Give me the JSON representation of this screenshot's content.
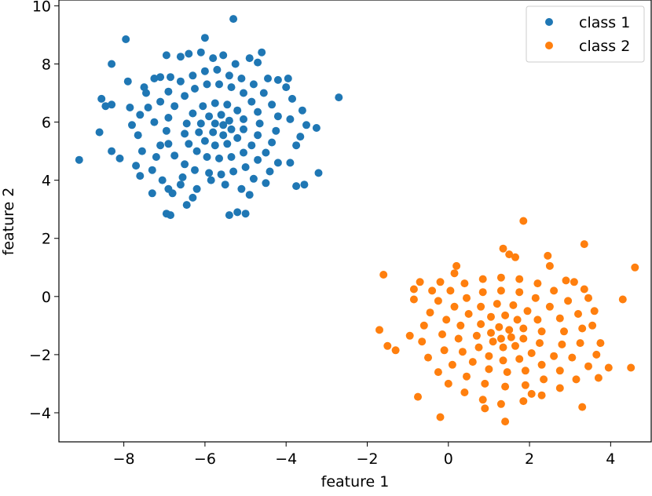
{
  "chart_data": {
    "type": "scatter",
    "title": "",
    "xlabel": "feature 1",
    "ylabel": "feature 2",
    "xlim": [
      -9.6,
      5.0
    ],
    "ylim": [
      -5.0,
      10.2
    ],
    "xticks": [
      -8,
      -6,
      -4,
      -2,
      0,
      2,
      4
    ],
    "yticks": [
      -4,
      -2,
      0,
      2,
      4,
      6,
      8,
      10
    ],
    "xtick_labels": [
      "−8",
      "−6",
      "−4",
      "−2",
      "0",
      "2",
      "4"
    ],
    "ytick_labels": [
      "−4",
      "−2",
      "0",
      "2",
      "4",
      "6",
      "8",
      "10"
    ],
    "grid": false,
    "legend_position": "top-right",
    "series": [
      {
        "name": "class 1",
        "color": "#1f77b4",
        "points": [
          [
            -9.1,
            4.7
          ],
          [
            -8.3,
            8.0
          ],
          [
            -7.95,
            8.85
          ],
          [
            -8.55,
            6.8
          ],
          [
            -8.6,
            5.65
          ],
          [
            -7.9,
            7.4
          ],
          [
            -6.95,
            2.85
          ],
          [
            -6.85,
            2.8
          ],
          [
            -5.4,
            2.8
          ],
          [
            -5.2,
            2.9
          ],
          [
            -5.0,
            2.85
          ],
          [
            -5.3,
            9.55
          ],
          [
            -6.0,
            8.9
          ],
          [
            -6.1,
            8.4
          ],
          [
            -4.6,
            8.4
          ],
          [
            -3.95,
            7.5
          ],
          [
            -2.7,
            6.85
          ],
          [
            -3.25,
            5.8
          ],
          [
            -3.2,
            4.25
          ],
          [
            -3.55,
            3.85
          ],
          [
            -3.75,
            3.8
          ],
          [
            -4.5,
            3.9
          ],
          [
            -4.9,
            3.5
          ],
          [
            -6.45,
            3.15
          ],
          [
            -6.3,
            3.4
          ],
          [
            -7.3,
            3.55
          ],
          [
            -7.6,
            4.15
          ],
          [
            -7.7,
            4.5
          ],
          [
            -8.3,
            5.0
          ],
          [
            -8.1,
            4.75
          ],
          [
            -8.45,
            6.55
          ],
          [
            -8.3,
            6.6
          ],
          [
            -7.85,
            6.5
          ],
          [
            -7.5,
            7.2
          ],
          [
            -7.45,
            7.0
          ],
          [
            -7.25,
            7.5
          ],
          [
            -7.1,
            7.55
          ],
          [
            -6.85,
            7.55
          ],
          [
            -6.95,
            8.3
          ],
          [
            -6.6,
            8.25
          ],
          [
            -6.4,
            8.35
          ],
          [
            -5.8,
            8.2
          ],
          [
            -5.55,
            8.3
          ],
          [
            -5.25,
            8.0
          ],
          [
            -4.9,
            8.2
          ],
          [
            -4.7,
            8.05
          ],
          [
            -4.45,
            7.5
          ],
          [
            -4.2,
            7.45
          ],
          [
            -4.0,
            7.2
          ],
          [
            -3.85,
            6.8
          ],
          [
            -3.9,
            6.1
          ],
          [
            -3.6,
            6.4
          ],
          [
            -3.5,
            5.9
          ],
          [
            -3.65,
            5.5
          ],
          [
            -3.75,
            5.2
          ],
          [
            -3.9,
            4.6
          ],
          [
            -4.2,
            4.6
          ],
          [
            -4.4,
            4.3
          ],
          [
            -4.8,
            4.05
          ],
          [
            -5.1,
            3.7
          ],
          [
            -5.5,
            3.85
          ],
          [
            -5.85,
            4.0
          ],
          [
            -6.2,
            3.7
          ],
          [
            -6.6,
            3.85
          ],
          [
            -6.9,
            3.7
          ],
          [
            -7.05,
            4.0
          ],
          [
            -7.3,
            4.35
          ],
          [
            -7.55,
            5.0
          ],
          [
            -7.65,
            5.55
          ],
          [
            -7.8,
            5.9
          ],
          [
            -7.6,
            6.25
          ],
          [
            -7.4,
            6.5
          ],
          [
            -6.8,
            3.55
          ],
          [
            -6.55,
            4.1
          ],
          [
            -7.2,
            4.8
          ],
          [
            -7.1,
            5.2
          ],
          [
            -7.25,
            6.0
          ],
          [
            -7.1,
            6.7
          ],
          [
            -6.9,
            7.05
          ],
          [
            -6.6,
            7.4
          ],
          [
            -6.3,
            7.6
          ],
          [
            -6.0,
            7.75
          ],
          [
            -5.7,
            7.8
          ],
          [
            -5.4,
            7.6
          ],
          [
            -5.1,
            7.5
          ],
          [
            -4.8,
            7.3
          ],
          [
            -4.55,
            7.0
          ],
          [
            -4.35,
            6.6
          ],
          [
            -4.2,
            6.2
          ],
          [
            -4.25,
            5.7
          ],
          [
            -4.35,
            5.3
          ],
          [
            -4.5,
            4.95
          ],
          [
            -4.7,
            4.7
          ],
          [
            -5.0,
            4.45
          ],
          [
            -5.3,
            4.3
          ],
          [
            -5.6,
            4.2
          ],
          [
            -5.9,
            4.25
          ],
          [
            -6.25,
            4.35
          ],
          [
            -6.5,
            4.55
          ],
          [
            -6.75,
            4.85
          ],
          [
            -6.9,
            5.25
          ],
          [
            -6.95,
            5.7
          ],
          [
            -6.9,
            6.15
          ],
          [
            -6.75,
            6.55
          ],
          [
            -6.5,
            6.9
          ],
          [
            -6.25,
            7.15
          ],
          [
            -5.95,
            7.3
          ],
          [
            -5.65,
            7.3
          ],
          [
            -5.35,
            7.2
          ],
          [
            -5.05,
            7.0
          ],
          [
            -4.85,
            6.7
          ],
          [
            -4.7,
            6.35
          ],
          [
            -4.65,
            5.95
          ],
          [
            -4.7,
            5.55
          ],
          [
            -4.85,
            5.2
          ],
          [
            -5.05,
            4.95
          ],
          [
            -5.35,
            4.8
          ],
          [
            -5.65,
            4.75
          ],
          [
            -5.95,
            4.8
          ],
          [
            -6.2,
            5.0
          ],
          [
            -6.4,
            5.25
          ],
          [
            -6.5,
            5.6
          ],
          [
            -6.45,
            5.95
          ],
          [
            -6.3,
            6.3
          ],
          [
            -6.05,
            6.55
          ],
          [
            -5.75,
            6.65
          ],
          [
            -5.45,
            6.6
          ],
          [
            -5.2,
            6.4
          ],
          [
            -5.05,
            6.1
          ],
          [
            -5.05,
            5.75
          ],
          [
            -5.2,
            5.45
          ],
          [
            -5.45,
            5.25
          ],
          [
            -5.75,
            5.2
          ],
          [
            -6.0,
            5.35
          ],
          [
            -6.15,
            5.65
          ],
          [
            -6.1,
            5.95
          ],
          [
            -5.9,
            6.2
          ],
          [
            -5.6,
            6.25
          ],
          [
            -5.4,
            6.05
          ],
          [
            -5.35,
            5.75
          ],
          [
            -5.55,
            5.55
          ],
          [
            -5.8,
            5.65
          ],
          [
            -5.75,
            5.95
          ],
          [
            -5.55,
            5.9
          ]
        ]
      },
      {
        "name": "class 2",
        "color": "#ff7f0e",
        "points": [
          [
            1.85,
            2.6
          ],
          [
            3.35,
            1.8
          ],
          [
            4.6,
            1.0
          ],
          [
            4.3,
            -0.1
          ],
          [
            4.5,
            -2.45
          ],
          [
            3.95,
            -2.45
          ],
          [
            3.7,
            -2.8
          ],
          [
            3.3,
            -3.8
          ],
          [
            2.05,
            -3.35
          ],
          [
            1.4,
            -4.3
          ],
          [
            0.9,
            -3.85
          ],
          [
            -0.75,
            -3.45
          ],
          [
            -0.2,
            -4.15
          ],
          [
            -1.6,
            0.75
          ],
          [
            -1.7,
            -1.15
          ],
          [
            -1.5,
            -1.7
          ],
          [
            -1.3,
            -1.85
          ],
          [
            -0.95,
            -1.35
          ],
          [
            -0.85,
            -0.1
          ],
          [
            -0.85,
            0.25
          ],
          [
            -0.7,
            0.5
          ],
          [
            -0.4,
            0.2
          ],
          [
            -0.2,
            0.5
          ],
          [
            0.15,
            0.8
          ],
          [
            0.2,
            1.05
          ],
          [
            1.35,
            1.65
          ],
          [
            1.5,
            1.45
          ],
          [
            1.65,
            1.35
          ],
          [
            2.45,
            1.4
          ],
          [
            2.5,
            1.05
          ],
          [
            2.9,
            0.55
          ],
          [
            3.1,
            0.5
          ],
          [
            3.35,
            0.25
          ],
          [
            3.45,
            -0.05
          ],
          [
            3.6,
            -0.5
          ],
          [
            3.55,
            -1.0
          ],
          [
            3.75,
            -1.6
          ],
          [
            3.65,
            -2.0
          ],
          [
            3.45,
            -2.4
          ],
          [
            3.15,
            -2.85
          ],
          [
            2.75,
            -3.15
          ],
          [
            2.3,
            -3.4
          ],
          [
            1.85,
            -3.6
          ],
          [
            1.3,
            -3.7
          ],
          [
            0.85,
            -3.55
          ],
          [
            0.4,
            -3.3
          ],
          [
            0.0,
            -3.0
          ],
          [
            -0.25,
            -2.6
          ],
          [
            -0.5,
            -2.1
          ],
          [
            -0.65,
            -1.55
          ],
          [
            -0.6,
            -1.0
          ],
          [
            -0.45,
            -0.55
          ],
          [
            -0.25,
            -0.15
          ],
          [
            0.05,
            0.2
          ],
          [
            0.4,
            0.45
          ],
          [
            0.85,
            0.6
          ],
          [
            1.3,
            0.65
          ],
          [
            1.75,
            0.6
          ],
          [
            2.2,
            0.45
          ],
          [
            2.6,
            0.2
          ],
          [
            2.95,
            -0.15
          ],
          [
            3.2,
            -0.6
          ],
          [
            3.3,
            -1.1
          ],
          [
            3.25,
            -1.6
          ],
          [
            3.05,
            -2.1
          ],
          [
            2.75,
            -2.55
          ],
          [
            2.35,
            -2.85
          ],
          [
            1.9,
            -3.05
          ],
          [
            1.4,
            -3.1
          ],
          [
            0.9,
            -3.0
          ],
          [
            0.45,
            -2.75
          ],
          [
            0.1,
            -2.35
          ],
          [
            -0.1,
            -1.85
          ],
          [
            -0.15,
            -1.3
          ],
          [
            -0.05,
            -0.8
          ],
          [
            0.15,
            -0.35
          ],
          [
            0.45,
            -0.05
          ],
          [
            0.85,
            0.15
          ],
          [
            1.3,
            0.2
          ],
          [
            1.75,
            0.15
          ],
          [
            2.15,
            -0.05
          ],
          [
            2.5,
            -0.35
          ],
          [
            2.75,
            -0.75
          ],
          [
            2.85,
            -1.2
          ],
          [
            2.8,
            -1.65
          ],
          [
            2.6,
            -2.05
          ],
          [
            2.3,
            -2.35
          ],
          [
            1.9,
            -2.55
          ],
          [
            1.45,
            -2.6
          ],
          [
            1.0,
            -2.5
          ],
          [
            0.6,
            -2.25
          ],
          [
            0.35,
            -1.9
          ],
          [
            0.25,
            -1.45
          ],
          [
            0.3,
            -1.0
          ],
          [
            0.5,
            -0.6
          ],
          [
            0.8,
            -0.35
          ],
          [
            1.2,
            -0.25
          ],
          [
            1.6,
            -0.3
          ],
          [
            1.95,
            -0.5
          ],
          [
            2.2,
            -0.8
          ],
          [
            2.3,
            -1.2
          ],
          [
            2.25,
            -1.6
          ],
          [
            2.05,
            -1.95
          ],
          [
            1.75,
            -2.15
          ],
          [
            1.35,
            -2.2
          ],
          [
            1.0,
            -2.05
          ],
          [
            0.75,
            -1.75
          ],
          [
            0.7,
            -1.35
          ],
          [
            0.8,
            -0.95
          ],
          [
            1.05,
            -0.7
          ],
          [
            1.4,
            -0.65
          ],
          [
            1.7,
            -0.8
          ],
          [
            1.85,
            -1.1
          ],
          [
            1.85,
            -1.45
          ],
          [
            1.65,
            -1.7
          ],
          [
            1.35,
            -1.75
          ],
          [
            1.1,
            -1.55
          ],
          [
            1.05,
            -1.25
          ],
          [
            1.25,
            -1.05
          ],
          [
            1.5,
            -1.15
          ],
          [
            1.55,
            -1.4
          ],
          [
            1.3,
            -1.45
          ]
        ]
      }
    ]
  }
}
